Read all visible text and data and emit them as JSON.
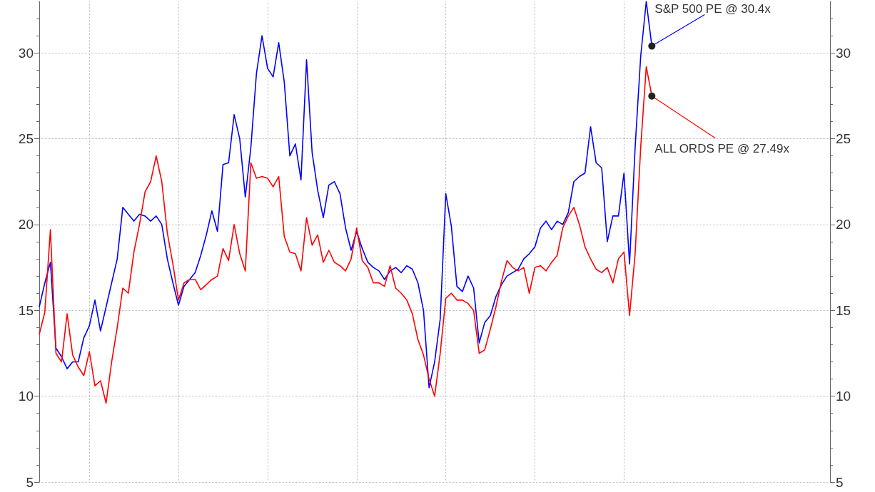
{
  "chart_data": {
    "type": "line",
    "categories": [
      null,
      null,
      null,
      null,
      null,
      null,
      null,
      null,
      null,
      null,
      null,
      null,
      null,
      null,
      null,
      null,
      null,
      null,
      null,
      null,
      null,
      null,
      null,
      null,
      null,
      null,
      null,
      null,
      null,
      null,
      null,
      null,
      null,
      null,
      null,
      null,
      null,
      null,
      null,
      null,
      null,
      null,
      null,
      null,
      null,
      null,
      null,
      null,
      null,
      null,
      null,
      null,
      null,
      null,
      null,
      null,
      null,
      null,
      null,
      null,
      null,
      null,
      null,
      null,
      null,
      null,
      null,
      null,
      null,
      null,
      null,
      null,
      null,
      null,
      null,
      null,
      null,
      null,
      null,
      null,
      null,
      null,
      null,
      null,
      null,
      null,
      null,
      null,
      null,
      null,
      null,
      null,
      null,
      null,
      null,
      null,
      null,
      null,
      null,
      null,
      null,
      null,
      null,
      null,
      null,
      null,
      null,
      null,
      null,
      null,
      null,
      null,
      null,
      null,
      null,
      null,
      null,
      null,
      null,
      null,
      null,
      null,
      null,
      null,
      null,
      null,
      null,
      null,
      null,
      null,
      null,
      null,
      null,
      null,
      null,
      null,
      null,
      null,
      null,
      null,
      null,
      null,
      null
    ],
    "series": [
      {
        "color": "#0000ff",
        "values": [
          15.2,
          16.6,
          17.8,
          12.8,
          12.3,
          11.6,
          12.0,
          12.0,
          13.4,
          14.1,
          15.6,
          13.8,
          15.2,
          16.6,
          18.0,
          21.0,
          20.6,
          20.2,
          20.6,
          20.5,
          20.2,
          20.5,
          20.0,
          18.0,
          16.6,
          15.3,
          16.4,
          16.8,
          17.2,
          18.2,
          19.4,
          20.8,
          19.6,
          23.5,
          23.6,
          26.4,
          25.0,
          21.6,
          24.5,
          28.8,
          31.0,
          29.1,
          28.6,
          30.6,
          28.3,
          24.0,
          24.7,
          22.6,
          29.6,
          24.2,
          22.0,
          20.4,
          22.3,
          22.5,
          21.8,
          19.8,
          18.5,
          19.6,
          18.6,
          17.8,
          17.5,
          17.3,
          16.8,
          17.3,
          17.5,
          17.2,
          17.6,
          17.4,
          16.6,
          15.0,
          10.5,
          12.0,
          14.5,
          21.8,
          19.9,
          16.4,
          16.1,
          17.0,
          16.3,
          13.1,
          14.3,
          14.7,
          15.8,
          16.5,
          17.0,
          17.2,
          17.4,
          18.0,
          18.3,
          18.7,
          19.8,
          20.2,
          19.7,
          20.2,
          20.0,
          20.7,
          22.5,
          22.8,
          23.0,
          25.7,
          23.6,
          23.3,
          19.0,
          20.5,
          20.5,
          23.0,
          17.7,
          24.5,
          29.8,
          33.0,
          30.4,
          null,
          null,
          null,
          null,
          null,
          null,
          null,
          null,
          null,
          null,
          null,
          null,
          null,
          null,
          null,
          null,
          null,
          null,
          null,
          null,
          null,
          null,
          null,
          null,
          null,
          null,
          null,
          null,
          null,
          null,
          null,
          null
        ]
      },
      {
        "color": "#ff0000",
        "values": [
          13.6,
          14.9,
          19.7,
          12.5,
          12.0,
          14.8,
          12.4,
          11.7,
          11.2,
          12.6,
          10.6,
          10.9,
          9.6,
          12.0,
          14.0,
          16.3,
          16.0,
          18.4,
          20.0,
          21.9,
          22.5,
          24.0,
          22.5,
          19.5,
          17.7,
          15.6,
          16.6,
          16.8,
          16.8,
          16.2,
          16.5,
          16.8,
          17.0,
          18.6,
          17.9,
          20.0,
          18.3,
          17.3,
          23.6,
          22.7,
          22.8,
          22.7,
          22.2,
          22.8,
          19.3,
          18.4,
          18.3,
          17.3,
          20.4,
          18.8,
          19.4,
          17.8,
          18.5,
          17.8,
          17.6,
          17.3,
          18.0,
          19.8,
          17.9,
          17.5,
          16.6,
          16.6,
          16.4,
          17.6,
          16.3,
          16.0,
          15.6,
          14.8,
          13.3,
          12.4,
          11.0,
          10.0,
          12.5,
          15.7,
          16.0,
          15.6,
          15.6,
          15.4,
          15.0,
          12.5,
          12.7,
          13.9,
          15.2,
          16.7,
          17.9,
          17.5,
          17.3,
          17.5,
          16.0,
          17.5,
          17.6,
          17.3,
          17.8,
          18.2,
          19.8,
          20.5,
          21.0,
          20.0,
          18.7,
          18.0,
          17.4,
          17.2,
          17.5,
          16.6,
          18.0,
          18.4,
          14.7,
          18.3,
          24.5,
          29.2,
          27.49,
          null,
          null,
          null,
          null,
          null,
          null,
          null,
          null,
          null,
          null,
          null,
          null,
          null,
          null,
          null,
          null,
          null,
          null,
          null,
          null,
          null,
          null,
          null,
          null,
          null,
          null,
          null,
          null,
          null,
          null,
          null,
          null
        ]
      }
    ],
    "ylim": [
      5,
      33
    ],
    "yticks": [
      5,
      10,
      15,
      20,
      25,
      30
    ],
    "y2lim": [
      5,
      33
    ],
    "y2ticks": [
      5,
      10,
      15,
      20,
      25,
      30
    ],
    "grid": true,
    "marker": "none",
    "line_style": "solid",
    "annotations": [
      "S&P 500 PE @ 30.4x",
      "ALL ORDS PE @ 27.49x"
    ]
  }
}
